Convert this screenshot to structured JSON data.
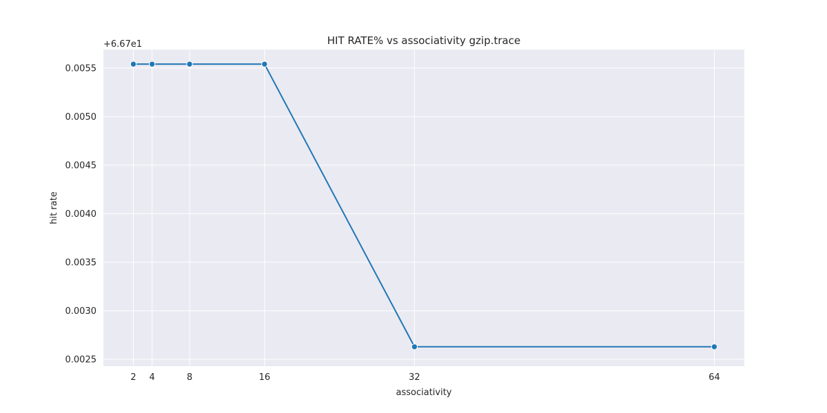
{
  "chart_data": {
    "type": "line",
    "title": "HIT RATE% vs associativity gzip.trace",
    "xlabel": "associativity",
    "ylabel": "hit rate",
    "y_offset_label": "+6.67e1",
    "x_ticks": [
      2,
      4,
      8,
      16,
      32,
      64
    ],
    "y_ticks": [
      "0.0025",
      "0.0030",
      "0.0035",
      "0.0040",
      "0.0045",
      "0.0050",
      "0.0055"
    ],
    "xlim": [
      -1.2,
      67.2
    ],
    "ylim": [
      0.00243,
      0.00569
    ],
    "grid": true,
    "series": [
      {
        "x": [
          2,
          4,
          8,
          16,
          32,
          64
        ],
        "values": [
          0.00554,
          0.00554,
          0.00554,
          0.00554,
          0.00263,
          0.00263
        ],
        "color": "#1f77b4"
      }
    ],
    "background_color": "#eaeaf2"
  }
}
